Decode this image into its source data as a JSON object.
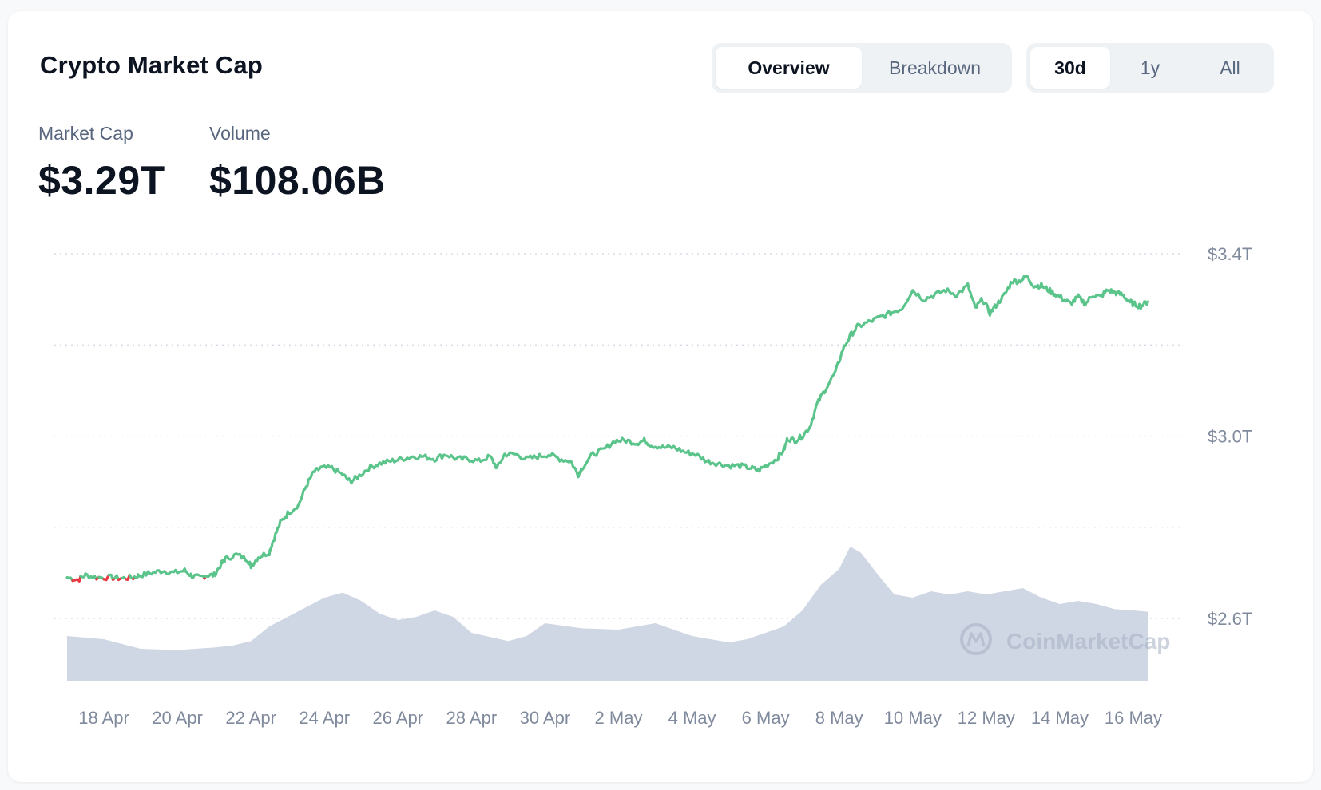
{
  "header": {
    "title": "Crypto Market Cap"
  },
  "view_tabs": [
    {
      "label": "Overview",
      "active": true
    },
    {
      "label": "Breakdown",
      "active": false
    }
  ],
  "range_tabs": [
    {
      "label": "30d",
      "active": true
    },
    {
      "label": "1y",
      "active": false
    },
    {
      "label": "All",
      "active": false
    }
  ],
  "stats": {
    "market_cap_label": "Market Cap",
    "market_cap_value": "$3.29T",
    "volume_label": "Volume",
    "volume_value": "$108.06B"
  },
  "watermark": "CoinMarketCap",
  "colors": {
    "up": "#16c784",
    "down": "#ea3943",
    "line_up": "#5bc48a",
    "volume": "#cfd6e4",
    "grid": "#cfd6e4",
    "axis_text": "#808a9d"
  },
  "chart_data": {
    "type": "line",
    "x_unit": "days since 17 Apr",
    "x_tick_labels": [
      "18 Apr",
      "20 Apr",
      "22 Apr",
      "24 Apr",
      "26 Apr",
      "28 Apr",
      "30 Apr",
      "2 May",
      "4 May",
      "6 May",
      "8 May",
      "10 May",
      "12 May",
      "14 May",
      "16 May"
    ],
    "y_ticks": [
      {
        "value": 3.4,
        "label": "$3.4T"
      },
      {
        "value": 3.0,
        "label": "$3.0T"
      },
      {
        "value": 2.6,
        "label": "$2.6T"
      }
    ],
    "y_gridlines": [
      3.4,
      3.2,
      3.0,
      2.8,
      2.6
    ],
    "ylim": [
      2.6,
      3.4
    ],
    "grid": true,
    "series": [
      {
        "name": "Market Cap",
        "unit": "T USD",
        "points": [
          [
            0.0,
            2.69
          ],
          [
            0.3,
            2.685
          ],
          [
            0.5,
            2.695
          ],
          [
            0.8,
            2.69
          ],
          [
            1.2,
            2.69
          ],
          [
            1.5,
            2.688
          ],
          [
            1.8,
            2.69
          ],
          [
            2.0,
            2.695
          ],
          [
            2.3,
            2.7
          ],
          [
            2.6,
            2.705
          ],
          [
            2.9,
            2.7
          ],
          [
            3.2,
            2.705
          ],
          [
            3.4,
            2.693
          ],
          [
            3.6,
            2.69
          ],
          [
            3.8,
            2.695
          ],
          [
            4.0,
            2.695
          ],
          [
            4.2,
            2.72
          ],
          [
            4.3,
            2.73
          ],
          [
            4.6,
            2.74
          ],
          [
            4.9,
            2.73
          ],
          [
            5.0,
            2.715
          ],
          [
            5.2,
            2.735
          ],
          [
            5.5,
            2.745
          ],
          [
            5.6,
            2.77
          ],
          [
            5.8,
            2.81
          ],
          [
            6.0,
            2.83
          ],
          [
            6.3,
            2.85
          ],
          [
            6.5,
            2.89
          ],
          [
            6.7,
            2.92
          ],
          [
            6.9,
            2.93
          ],
          [
            7.2,
            2.93
          ],
          [
            7.5,
            2.915
          ],
          [
            7.7,
            2.9
          ],
          [
            7.9,
            2.91
          ],
          [
            8.2,
            2.93
          ],
          [
            8.5,
            2.94
          ],
          [
            8.8,
            2.945
          ],
          [
            9.1,
            2.95
          ],
          [
            9.4,
            2.955
          ],
          [
            9.7,
            2.955
          ],
          [
            10.0,
            2.95
          ],
          [
            10.3,
            2.96
          ],
          [
            10.6,
            2.95
          ],
          [
            10.9,
            2.95
          ],
          [
            11.2,
            2.945
          ],
          [
            11.5,
            2.955
          ],
          [
            11.7,
            2.93
          ],
          [
            11.9,
            2.96
          ],
          [
            12.2,
            2.96
          ],
          [
            12.5,
            2.95
          ],
          [
            12.8,
            2.955
          ],
          [
            13.1,
            2.96
          ],
          [
            13.4,
            2.95
          ],
          [
            13.7,
            2.945
          ],
          [
            13.9,
            2.915
          ],
          [
            14.0,
            2.93
          ],
          [
            14.3,
            2.96
          ],
          [
            14.6,
            2.97
          ],
          [
            14.9,
            2.99
          ],
          [
            15.2,
            2.99
          ],
          [
            15.5,
            2.985
          ],
          [
            15.7,
            2.99
          ],
          [
            15.9,
            2.98
          ],
          [
            16.2,
            2.975
          ],
          [
            16.5,
            2.975
          ],
          [
            16.8,
            2.965
          ],
          [
            17.1,
            2.96
          ],
          [
            17.4,
            2.945
          ],
          [
            17.7,
            2.94
          ],
          [
            18.0,
            2.935
          ],
          [
            18.3,
            2.935
          ],
          [
            18.6,
            2.93
          ],
          [
            18.8,
            2.925
          ],
          [
            19.0,
            2.935
          ],
          [
            19.3,
            2.95
          ],
          [
            19.5,
            2.97
          ],
          [
            19.6,
            2.995
          ],
          [
            19.8,
            2.99
          ],
          [
            20.0,
            3.0
          ],
          [
            20.2,
            3.02
          ],
          [
            20.4,
            3.07
          ],
          [
            20.6,
            3.1
          ],
          [
            20.9,
            3.14
          ],
          [
            21.1,
            3.19
          ],
          [
            21.3,
            3.22
          ],
          [
            21.5,
            3.24
          ],
          [
            21.8,
            3.25
          ],
          [
            22.1,
            3.26
          ],
          [
            22.4,
            3.27
          ],
          [
            22.7,
            3.28
          ],
          [
            23.0,
            3.32
          ],
          [
            23.3,
            3.3
          ],
          [
            23.6,
            3.31
          ],
          [
            23.9,
            3.32
          ],
          [
            24.2,
            3.31
          ],
          [
            24.5,
            3.33
          ],
          [
            24.7,
            3.28
          ],
          [
            24.9,
            3.3
          ],
          [
            25.1,
            3.27
          ],
          [
            25.3,
            3.29
          ],
          [
            25.5,
            3.31
          ],
          [
            25.7,
            3.34
          ],
          [
            25.9,
            3.34
          ],
          [
            26.1,
            3.35
          ],
          [
            26.3,
            3.33
          ],
          [
            26.5,
            3.33
          ],
          [
            26.7,
            3.32
          ],
          [
            26.9,
            3.31
          ],
          [
            27.1,
            3.3
          ],
          [
            27.3,
            3.29
          ],
          [
            27.5,
            3.305
          ],
          [
            27.7,
            3.29
          ],
          [
            27.9,
            3.31
          ],
          [
            28.1,
            3.305
          ],
          [
            28.3,
            3.32
          ],
          [
            28.5,
            3.315
          ],
          [
            28.7,
            3.31
          ],
          [
            28.9,
            3.295
          ],
          [
            29.0,
            3.29
          ],
          [
            29.2,
            3.285
          ],
          [
            29.4,
            3.295
          ]
        ]
      },
      {
        "name": "Volume",
        "unit": "B USD",
        "ylim": [
          0,
          300
        ],
        "points": [
          [
            0.0,
            70
          ],
          [
            1.0,
            65
          ],
          [
            2.0,
            50
          ],
          [
            3.0,
            48
          ],
          [
            4.0,
            52
          ],
          [
            4.5,
            55
          ],
          [
            5.0,
            62
          ],
          [
            5.5,
            85
          ],
          [
            6.0,
            100
          ],
          [
            6.5,
            115
          ],
          [
            7.0,
            130
          ],
          [
            7.5,
            138
          ],
          [
            8.0,
            125
          ],
          [
            8.5,
            105
          ],
          [
            9.0,
            95
          ],
          [
            9.5,
            100
          ],
          [
            10.0,
            110
          ],
          [
            10.5,
            100
          ],
          [
            11.0,
            75
          ],
          [
            12.0,
            62
          ],
          [
            12.5,
            70
          ],
          [
            13.0,
            90
          ],
          [
            14.0,
            82
          ],
          [
            15.0,
            80
          ],
          [
            15.5,
            85
          ],
          [
            16.0,
            90
          ],
          [
            17.0,
            70
          ],
          [
            18.0,
            60
          ],
          [
            18.5,
            65
          ],
          [
            19.0,
            75
          ],
          [
            19.5,
            85
          ],
          [
            20.0,
            110
          ],
          [
            20.5,
            150
          ],
          [
            21.0,
            175
          ],
          [
            21.3,
            210
          ],
          [
            21.6,
            200
          ],
          [
            22.0,
            170
          ],
          [
            22.5,
            135
          ],
          [
            23.0,
            130
          ],
          [
            23.5,
            140
          ],
          [
            24.0,
            135
          ],
          [
            24.5,
            140
          ],
          [
            25.0,
            135
          ],
          [
            25.5,
            140
          ],
          [
            26.0,
            145
          ],
          [
            26.5,
            130
          ],
          [
            27.0,
            120
          ],
          [
            27.5,
            125
          ],
          [
            28.0,
            120
          ],
          [
            28.5,
            112
          ],
          [
            29.0,
            110
          ],
          [
            29.4,
            108
          ]
        ]
      }
    ]
  }
}
